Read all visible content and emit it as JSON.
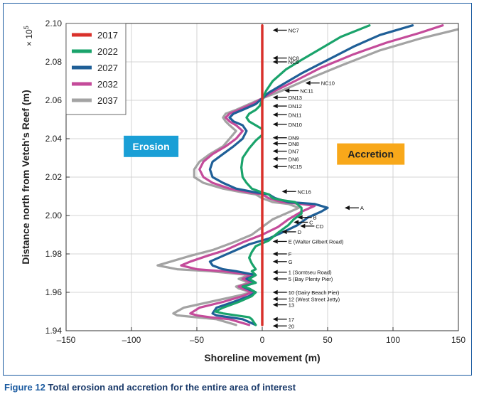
{
  "chart_data": {
    "type": "line",
    "title": "",
    "xlabel": "Shoreline movement (m)",
    "ylabel": "Distance north from Vetch's Reef (m)",
    "y_multiplier": "× 10",
    "y_multiplier_exp": "5",
    "xlim": [
      -150,
      150
    ],
    "ylim": [
      1.94,
      2.1
    ],
    "x_ticks": [
      -150,
      -100,
      -50,
      0,
      50,
      100,
      150
    ],
    "x_tick_labels": [
      "–150",
      "–100",
      "–50",
      "0",
      "50",
      "100",
      "150"
    ],
    "y_ticks": [
      1.94,
      1.96,
      1.98,
      2.0,
      2.02,
      2.04,
      2.06,
      2.08,
      2.1
    ],
    "y_tick_labels": [
      "1.94",
      "1.96",
      "1.98",
      "2.00",
      "2.02",
      "2.04",
      "2.06",
      "2.08",
      "2.10"
    ],
    "legend_position": "top-left",
    "series": [
      {
        "name": "2017",
        "color": "#d9312b",
        "points": [
          [
            0,
            1.943
          ],
          [
            0,
            2.099
          ]
        ]
      },
      {
        "name": "2022",
        "color": "#1aa36b",
        "points": [
          [
            -5,
            1.943
          ],
          [
            -8,
            1.946
          ],
          [
            -10,
            1.947
          ],
          [
            -20,
            1.948
          ],
          [
            -30,
            1.949
          ],
          [
            -36,
            1.95
          ],
          [
            -30,
            1.952
          ],
          [
            -18,
            1.955
          ],
          [
            -8,
            1.958
          ],
          [
            -5,
            1.96
          ],
          [
            -10,
            1.962
          ],
          [
            -15,
            1.963
          ],
          [
            -5,
            1.965
          ],
          [
            -10,
            1.967
          ],
          [
            -5,
            1.969
          ],
          [
            -8,
            1.971
          ],
          [
            -5,
            1.972
          ],
          [
            -8,
            1.975
          ],
          [
            -10,
            1.978
          ],
          [
            -8,
            1.981
          ],
          [
            -5,
            1.984
          ],
          [
            5,
            1.987
          ],
          [
            12,
            1.991
          ],
          [
            20,
            1.995
          ],
          [
            24,
            1.998
          ],
          [
            30,
            2.001
          ],
          [
            30,
            2.004
          ],
          [
            25,
            2.007
          ],
          [
            15,
            2.008
          ],
          [
            8,
            2.009
          ],
          [
            5,
            2.011
          ],
          [
            0,
            2.012
          ],
          [
            -8,
            2.014
          ],
          [
            -12,
            2.017
          ],
          [
            -15,
            2.02
          ],
          [
            -16,
            2.025
          ],
          [
            -15,
            2.03
          ],
          [
            -10,
            2.035
          ],
          [
            -5,
            2.039
          ],
          [
            0,
            2.042
          ],
          [
            0,
            2.045
          ],
          [
            -5,
            2.047
          ],
          [
            -10,
            2.049
          ],
          [
            -12,
            2.051
          ],
          [
            -10,
            2.053
          ],
          [
            -5,
            2.055
          ],
          [
            -2,
            2.057
          ],
          [
            0,
            2.06
          ],
          [
            1,
            2.062
          ],
          [
            3,
            2.065
          ],
          [
            8,
            2.07
          ],
          [
            18,
            2.076
          ],
          [
            30,
            2.081
          ],
          [
            45,
            2.087
          ],
          [
            60,
            2.093
          ],
          [
            82,
            2.099
          ]
        ]
      },
      {
        "name": "2027",
        "color": "#1f5f97",
        "points": [
          [
            -5,
            1.943
          ],
          [
            -15,
            1.946
          ],
          [
            -25,
            1.947
          ],
          [
            -35,
            1.948
          ],
          [
            -38,
            1.949
          ],
          [
            -35,
            1.952
          ],
          [
            -22,
            1.955
          ],
          [
            -10,
            1.958
          ],
          [
            -5,
            1.96
          ],
          [
            -12,
            1.962
          ],
          [
            -15,
            1.963
          ],
          [
            -5,
            1.965
          ],
          [
            -12,
            1.967
          ],
          [
            -5,
            1.969
          ],
          [
            -20,
            1.971
          ],
          [
            -30,
            1.972
          ],
          [
            -38,
            1.974
          ],
          [
            -40,
            1.976
          ],
          [
            -30,
            1.979
          ],
          [
            -20,
            1.982
          ],
          [
            -10,
            1.985
          ],
          [
            5,
            1.988
          ],
          [
            18,
            1.992
          ],
          [
            27,
            1.995
          ],
          [
            35,
            1.999
          ],
          [
            45,
            2.002
          ],
          [
            50,
            2.004
          ],
          [
            40,
            2.006
          ],
          [
            20,
            2.007
          ],
          [
            10,
            2.009
          ],
          [
            5,
            2.011
          ],
          [
            -5,
            2.012
          ],
          [
            -20,
            2.014
          ],
          [
            -30,
            2.017
          ],
          [
            -38,
            2.02
          ],
          [
            -40,
            2.024
          ],
          [
            -38,
            2.028
          ],
          [
            -30,
            2.032
          ],
          [
            -22,
            2.036
          ],
          [
            -15,
            2.04
          ],
          [
            -12,
            2.044
          ],
          [
            -15,
            2.047
          ],
          [
            -22,
            2.049
          ],
          [
            -25,
            2.051
          ],
          [
            -22,
            2.053
          ],
          [
            -15,
            2.055
          ],
          [
            -5,
            2.058
          ],
          [
            0,
            2.061
          ],
          [
            5,
            2.064
          ],
          [
            15,
            2.068
          ],
          [
            30,
            2.074
          ],
          [
            50,
            2.081
          ],
          [
            70,
            2.088
          ],
          [
            90,
            2.094
          ],
          [
            115,
            2.099
          ]
        ]
      },
      {
        "name": "2032",
        "color": "#c44b9a",
        "points": [
          [
            -10,
            1.943
          ],
          [
            -25,
            1.946
          ],
          [
            -40,
            1.947
          ],
          [
            -50,
            1.948
          ],
          [
            -55,
            1.949
          ],
          [
            -48,
            1.952
          ],
          [
            -30,
            1.955
          ],
          [
            -15,
            1.958
          ],
          [
            -8,
            1.96
          ],
          [
            -15,
            1.962
          ],
          [
            -18,
            1.963
          ],
          [
            -8,
            1.965
          ],
          [
            -15,
            1.967
          ],
          [
            -8,
            1.969
          ],
          [
            -30,
            1.971
          ],
          [
            -50,
            1.972
          ],
          [
            -62,
            1.974
          ],
          [
            -55,
            1.976
          ],
          [
            -42,
            1.979
          ],
          [
            -28,
            1.982
          ],
          [
            -15,
            1.986
          ],
          [
            0,
            1.99
          ],
          [
            12,
            1.994
          ],
          [
            20,
            1.998
          ],
          [
            30,
            2.002
          ],
          [
            40,
            2.005
          ],
          [
            30,
            2.006
          ],
          [
            15,
            2.007
          ],
          [
            5,
            2.009
          ],
          [
            0,
            2.011
          ],
          [
            -10,
            2.012
          ],
          [
            -25,
            2.014
          ],
          [
            -38,
            2.017
          ],
          [
            -45,
            2.02
          ],
          [
            -48,
            2.024
          ],
          [
            -45,
            2.028
          ],
          [
            -38,
            2.032
          ],
          [
            -28,
            2.036
          ],
          [
            -20,
            2.04
          ],
          [
            -15,
            2.044
          ],
          [
            -20,
            2.047
          ],
          [
            -25,
            2.049
          ],
          [
            -28,
            2.051
          ],
          [
            -25,
            2.053
          ],
          [
            -18,
            2.055
          ],
          [
            -8,
            2.058
          ],
          [
            0,
            2.061
          ],
          [
            10,
            2.065
          ],
          [
            25,
            2.07
          ],
          [
            45,
            2.077
          ],
          [
            70,
            2.084
          ],
          [
            95,
            2.09
          ],
          [
            120,
            2.095
          ],
          [
            138,
            2.099
          ]
        ]
      },
      {
        "name": "2037",
        "color": "#a3a3a3",
        "points": [
          [
            -20,
            1.943
          ],
          [
            -35,
            1.946
          ],
          [
            -50,
            1.947
          ],
          [
            -65,
            1.948
          ],
          [
            -68,
            1.949
          ],
          [
            -60,
            1.952
          ],
          [
            -40,
            1.955
          ],
          [
            -20,
            1.958
          ],
          [
            -8,
            1.96
          ],
          [
            -18,
            1.962
          ],
          [
            -20,
            1.963
          ],
          [
            -10,
            1.965
          ],
          [
            -18,
            1.967
          ],
          [
            -10,
            1.969
          ],
          [
            -40,
            1.971
          ],
          [
            -65,
            1.972
          ],
          [
            -80,
            1.974
          ],
          [
            -70,
            1.976
          ],
          [
            -55,
            1.979
          ],
          [
            -38,
            1.982
          ],
          [
            -22,
            1.986
          ],
          [
            -8,
            1.99
          ],
          [
            0,
            1.994
          ],
          [
            8,
            1.998
          ],
          [
            18,
            2.001
          ],
          [
            28,
            2.004
          ],
          [
            20,
            2.006
          ],
          [
            8,
            2.007
          ],
          [
            0,
            2.009
          ],
          [
            -5,
            2.011
          ],
          [
            -15,
            2.012
          ],
          [
            -30,
            2.014
          ],
          [
            -45,
            2.017
          ],
          [
            -52,
            2.02
          ],
          [
            -52,
            2.024
          ],
          [
            -48,
            2.028
          ],
          [
            -40,
            2.032
          ],
          [
            -30,
            2.036
          ],
          [
            -25,
            2.04
          ],
          [
            -20,
            2.044
          ],
          [
            -25,
            2.047
          ],
          [
            -28,
            2.049
          ],
          [
            -30,
            2.051
          ],
          [
            -28,
            2.053
          ],
          [
            -20,
            2.055
          ],
          [
            -10,
            2.058
          ],
          [
            0,
            2.061
          ],
          [
            15,
            2.065
          ],
          [
            35,
            2.071
          ],
          [
            60,
            2.078
          ],
          [
            90,
            2.086
          ],
          [
            120,
            2.092
          ],
          [
            150,
            2.097
          ]
        ]
      }
    ],
    "region_labels": [
      {
        "text": "Erosion",
        "color": "#1a9fd6",
        "x": -85,
        "y": 2.036
      },
      {
        "text": "Accretion",
        "color": "#f8a81a",
        "x": 83,
        "y": 2.032
      }
    ],
    "annotations": [
      {
        "label": "NC7",
        "x": 8,
        "y": 2.0965
      },
      {
        "label": "NC8",
        "x": 8,
        "y": 2.082
      },
      {
        "label": "NC9",
        "x": 8,
        "y": 2.08
      },
      {
        "label": "NC10",
        "x": 33,
        "y": 2.069
      },
      {
        "label": "NC11",
        "x": 17,
        "y": 2.065
      },
      {
        "label": "DN13",
        "x": 8,
        "y": 2.0615
      },
      {
        "label": "DN12",
        "x": 8,
        "y": 2.057
      },
      {
        "label": "DN11",
        "x": 8,
        "y": 2.0525
      },
      {
        "label": "DN10",
        "x": 8,
        "y": 2.0475
      },
      {
        "label": "DN9",
        "x": 8,
        "y": 2.0405
      },
      {
        "label": "DN8",
        "x": 8,
        "y": 2.0375
      },
      {
        "label": "DN7",
        "x": 8,
        "y": 2.0335
      },
      {
        "label": "DN6",
        "x": 8,
        "y": 2.0295
      },
      {
        "label": "NC15",
        "x": 8,
        "y": 2.0255
      },
      {
        "label": "NC16",
        "x": 15,
        "y": 2.0125
      },
      {
        "label": "A",
        "x": 63,
        "y": 2.004
      },
      {
        "label": "B",
        "x": 27,
        "y": 1.999
      },
      {
        "label": "C",
        "x": 24,
        "y": 1.9965
      },
      {
        "label": "CD",
        "x": 29,
        "y": 1.9945
      },
      {
        "label": "D",
        "x": 15,
        "y": 1.9915
      },
      {
        "label": "E (Walter Gilbert Road)",
        "x": 8,
        "y": 1.9865
      },
      {
        "label": "F",
        "x": 8,
        "y": 1.98
      },
      {
        "label": "G",
        "x": 8,
        "y": 1.976
      },
      {
        "label": "1 (Somtseu Road)",
        "x": 8,
        "y": 1.9705
      },
      {
        "label": "5 (Bay Plenty Pier)",
        "x": 8,
        "y": 1.967
      },
      {
        "label": "10 (Dairy Beach Pier)",
        "x": 8,
        "y": 1.96
      },
      {
        "label": "12 (West Street Jetty)",
        "x": 8,
        "y": 1.9565
      },
      {
        "label": "13",
        "x": 8,
        "y": 1.9535
      },
      {
        "label": "17",
        "x": 8,
        "y": 1.946
      },
      {
        "label": "20",
        "x": 8,
        "y": 1.9425
      }
    ]
  },
  "caption": {
    "number": "Figure 12",
    "text": "Total erosion and accretion for the entire area of interest"
  }
}
